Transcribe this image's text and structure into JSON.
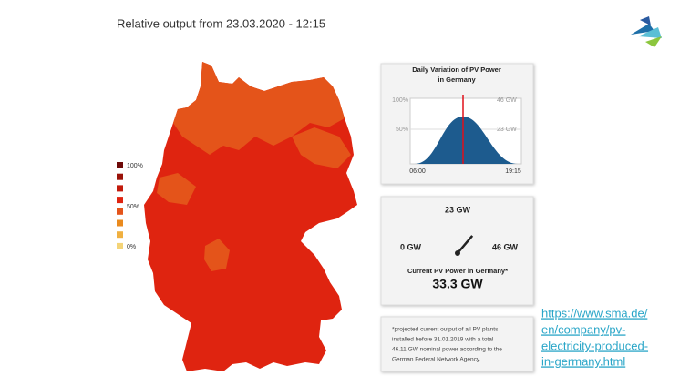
{
  "header": {
    "title": "Relative output from 23.03.2020 - 12:15"
  },
  "legend": {
    "labels": [
      "100%",
      "50%",
      "0%"
    ]
  },
  "daily_chart": {
    "title_lines": [
      "Daily Variation of PV Power",
      "in Germany"
    ],
    "left_ticks": [
      "100%",
      "50%"
    ],
    "right_ticks": [
      "46 GW",
      "23 GW"
    ],
    "x_labels": [
      "06:00",
      "19:15"
    ]
  },
  "gauge": {
    "top_label": "23 GW",
    "min_label": "0 GW",
    "max_label": "46 GW",
    "caption": "Current PV Power in Germany*",
    "value": "33.3 GW"
  },
  "footnote": {
    "lines": [
      "*projected current output of all PV plants",
      "installed before 31.01.2019 with a total",
      "46.11 GW nominal power according to the",
      "German Federal Network Agency."
    ]
  },
  "link": {
    "lines": [
      "https://www.sma.de/",
      "en/company/pv-",
      "electricity-produced-",
      "in-germany.html"
    ]
  }
}
